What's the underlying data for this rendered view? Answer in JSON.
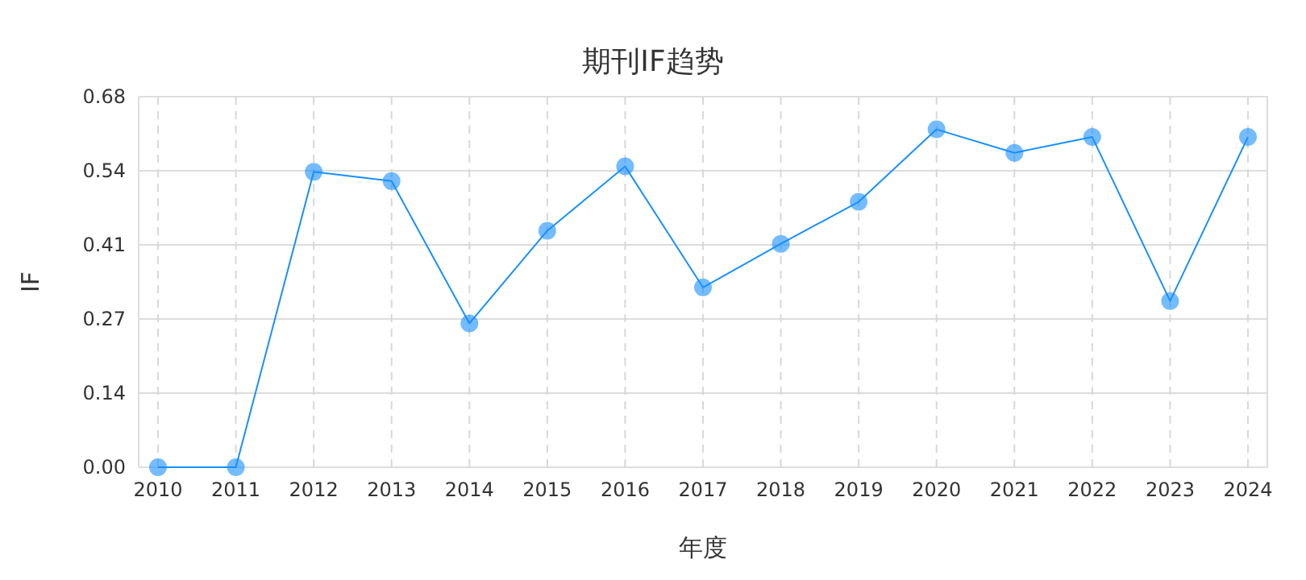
{
  "chart_data": {
    "type": "line",
    "title": "期刊IF趋势",
    "xlabel": "年度",
    "ylabel": "IF",
    "categories": [
      "2010",
      "2011",
      "2012",
      "2013",
      "2014",
      "2015",
      "2016",
      "2017",
      "2018",
      "2019",
      "2020",
      "2021",
      "2022",
      "2023",
      "2024"
    ],
    "series": [
      {
        "color": "#1890ff",
        "values": [
          0,
          0,
          0.542,
          0.525,
          0.264,
          0.434,
          0.552,
          0.33,
          0.41,
          0.487,
          0.62,
          0.577,
          0.606,
          0.305,
          0.606
        ]
      }
    ],
    "ylim": [
      0,
      0.68
    ],
    "yticks": [
      {
        "value": 0,
        "label": "0.00"
      },
      {
        "value": 0.136,
        "label": "0.14"
      },
      {
        "value": 0.272,
        "label": "0.27"
      },
      {
        "value": 0.408,
        "label": "0.41"
      },
      {
        "value": 0.544,
        "label": "0.54"
      },
      {
        "value": 0.68,
        "label": "0.68"
      }
    ],
    "grid": true,
    "marker": "circle",
    "line_style": "solid"
  }
}
